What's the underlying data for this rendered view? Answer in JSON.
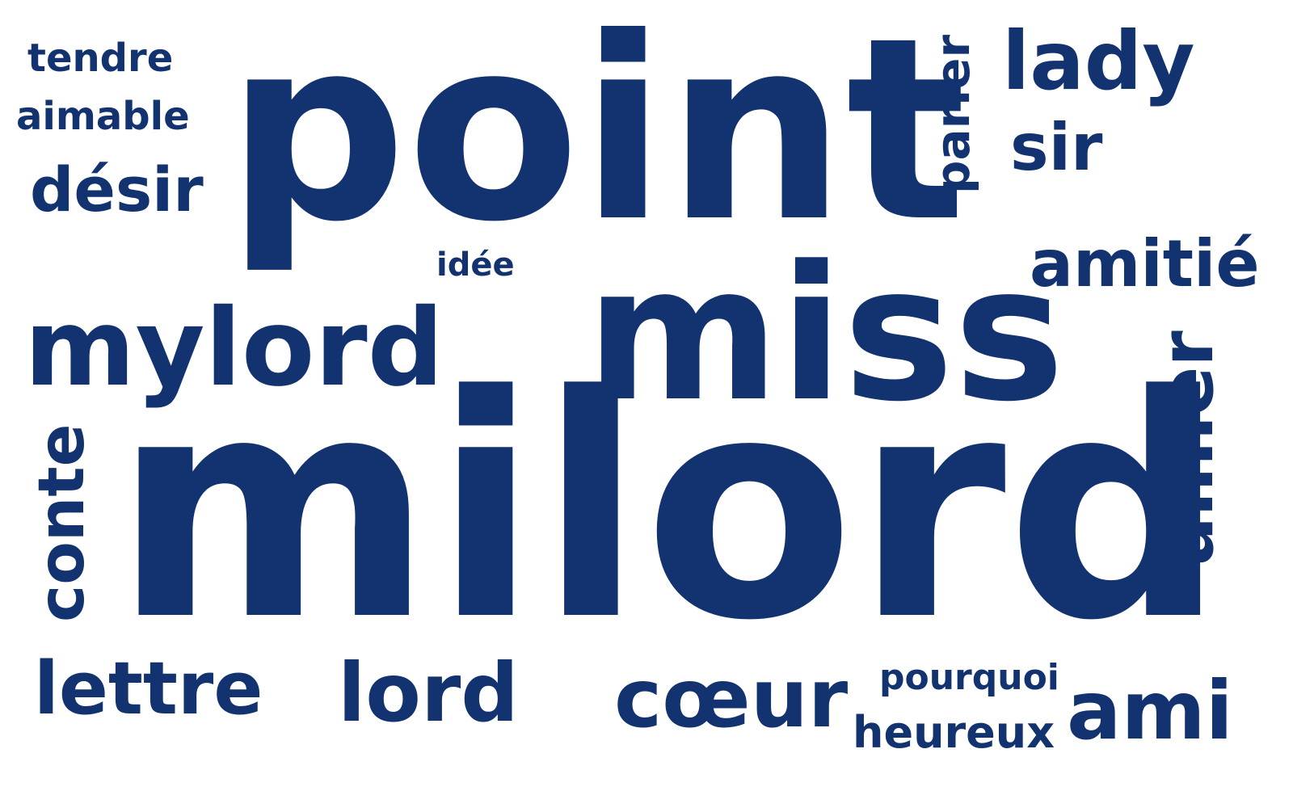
{
  "word_cloud": {
    "color": "#12336f",
    "background": "#ffffff",
    "words": {
      "milord": "milord",
      "point": "point",
      "miss": "miss",
      "mylord": "mylord",
      "lord": "lord",
      "coeur": "cœur",
      "ami": "ami",
      "lettre": "lettre",
      "conte": "conte",
      "aimer": "aimer",
      "lady": "lady",
      "amitie": "amitié",
      "desir": "désir",
      "sir": "sir",
      "parler": "parler",
      "heureux": "heureux",
      "tendre": "tendre",
      "aimable": "aimable",
      "pourquoi": "pourquoi",
      "idee": "idée"
    }
  }
}
